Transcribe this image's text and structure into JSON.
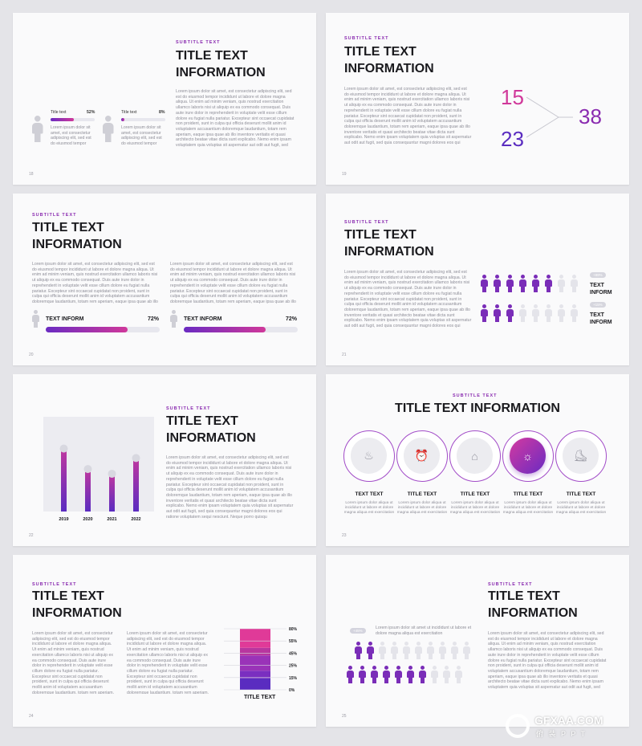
{
  "common": {
    "subtitle": "SUBTITLE TEXT",
    "title_l1": "TITLE TEXT",
    "title_l2": "INFORMATION",
    "title_one_line": "TITLE TEXT INFORMATION",
    "lorem_long": "Lorem ipsum dolor sit amet, est consectetur adipiscing elit, sed est do eiusmod tempor incididunt ut labore et dolore magna aliqua. Ut enim ad minim veniam, quis nostrud exercitation ullamco laboris nisi ut aliquip ex ea commodo consequat. Duis aute irure dolor in reprehenderit in voluptate velit esse cillum dolore eu fugiat nulla pariatur. Excepteur sint occaecat cupidatat non proident, sunt in culpa qui officia deserunt mollit anim id voluptatem accusantium doloremque laudantium, totam rem aperiam, eaque ipsa quae ab illo inventore veritatis et quasi architecto beatae vitae dicta sunt explicabo. Nemo enim ipsam voluptatem quia voluptas sit aspernatur aut odit aut fugit, sed quia consequuntur magni dolores eos qui ratione voluptatem sequi nesciunt. Neque porro quisqu",
    "lorem_short": "Lorem ipsum dolor sit amet, est consectetur adipiscing elit, sed est do eiusmod tempor",
    "lorem_mid": "Lorem ipsum dolor sit amet, est consectetur adipiscing elit, sed est do eiusmod tempor incididunt ut labore et dolore magna aliqua. Ut enim ad minim veniam, quis nostrud exercitation ullamco laboris nisi ut aliquip ex ea commodo consequat. Duis aute irure dolor in reprehenderit in voluptate velit esse cillum dolore eu fugiat nulla pariatur. Excepteur sint occaecat cupidatat non proident, sunt in culpa qui officia deserunt mollit anim id voluptatem accusantium doloremque laudantium, totam rem aperiam, eaque ipsa quae ab illo inventore veritatis et quasi archite",
    "lorem_col": "Lorem ipsum dolor sit amet, est consectetur adipiscing elit, sed est do eiusmod tempor incididunt ut labore et dolore magna aliqua. Ut enim ad minim veniam, quis nostrud exercitation ullamco laboris nisi ut aliquip ex ea commodo consequat. Duis aute irure dolor in reprehenderit in voluptate velit esse cillum dolore eu fugiat nulla pariatur. Excepteur sint occaecat cupidatat non proident, sunt in culpa qui officia deserunt mollit anim id voluptatem accusantium doloremque laudantium, totam rem aperiam, eaque ipsa quae ab illo inventore veritatis et quasi architecto beatae vitae dicta sunt explicabo. Nemo enim ipsam voluptatem quia voluptas sit aspernatur aut odit aut fugit, sed quia consequuntur magni dolores eos qui ratione",
    "lorem_tiny": "Lorem ipsum dolor aliqua ut incididunt ut labore et dolore magna aliqua est exercitation",
    "lorem_25": "Lorem ipsum dolor sit amet ut incididunt ut labore et dolore magna aliqua est exercitation"
  },
  "slides": {
    "s18": {
      "page": "18",
      "stats": [
        {
          "label": "Title text",
          "pct": "52%",
          "value": 52
        },
        {
          "label": "Title text",
          "pct": "8%",
          "value": 8
        }
      ]
    },
    "s19": {
      "page": "19",
      "n1": "15",
      "n2": "23",
      "n3": "38"
    },
    "s20": {
      "page": "20",
      "bars": [
        {
          "label": "TEXT INFORM",
          "pct": "72%",
          "value": 72
        },
        {
          "label": "TEXT INFORM",
          "pct": "72%",
          "value": 72
        }
      ]
    },
    "s21": {
      "page": "21",
      "rows": [
        {
          "badge": "+89%",
          "label_l1": "TEXT",
          "label_l2": "INFORM",
          "on": 6,
          "total": 8
        },
        {
          "badge": "+15%",
          "label_l1": "TEXT",
          "label_l2": "INFORM",
          "on": 3,
          "total": 8
        }
      ]
    },
    "s22": {
      "page": "22"
    },
    "s23": {
      "page": "23",
      "items": [
        {
          "icon": "fire-icon",
          "glyph": "♨",
          "title": "TEXT TEXT"
        },
        {
          "icon": "alarm-clock-icon",
          "glyph": "⏰",
          "title": "TITLE TEXT"
        },
        {
          "icon": "basket-icon",
          "glyph": "⌂",
          "title": "TITLE TEXT"
        },
        {
          "icon": "lightbulb-icon",
          "glyph": "☼",
          "title": "TITLE TEXT"
        },
        {
          "icon": "boot-icon",
          "glyph": "⛸",
          "title": "TITLE TEXT"
        }
      ]
    },
    "s24": {
      "page": "24",
      "chart_label": "TITLE TEXT"
    },
    "s25": {
      "page": "25",
      "badge": "+45%"
    }
  },
  "chart_data": [
    {
      "type": "bar",
      "title": "",
      "categories": [
        "2019",
        "2020",
        "2021",
        "2022"
      ],
      "values": [
        80,
        54,
        48,
        68
      ],
      "ylim": [
        0,
        100
      ],
      "xlabel": "",
      "ylabel": ""
    },
    {
      "type": "bar",
      "title": "TITLE TEXT",
      "stacked": true,
      "categories": [
        "TITLE TEXT"
      ],
      "ticks": [
        "80%",
        "55%",
        "45%",
        "25%",
        "15%",
        "0%"
      ],
      "ylim": [
        0,
        80
      ],
      "segments": [
        {
          "name": "0-15",
          "value": 15,
          "color": "#5a2cc0"
        },
        {
          "name": "15-25",
          "value": 10,
          "color": "#7a2fc0"
        },
        {
          "name": "25-45",
          "value": 20,
          "color": "#9a33b8"
        },
        {
          "name": "45-55",
          "value": 10,
          "color": "#b8369f"
        },
        {
          "name": "55-80",
          "value": 25,
          "color": "#e03a98"
        }
      ]
    }
  ],
  "watermark": {
    "brand": "GFXAA.COM",
    "sub": "俯 装 P P T"
  },
  "colors": {
    "accent": "#8a2bb0",
    "pink": "#d0389a",
    "purple": "#6a2bc2"
  }
}
